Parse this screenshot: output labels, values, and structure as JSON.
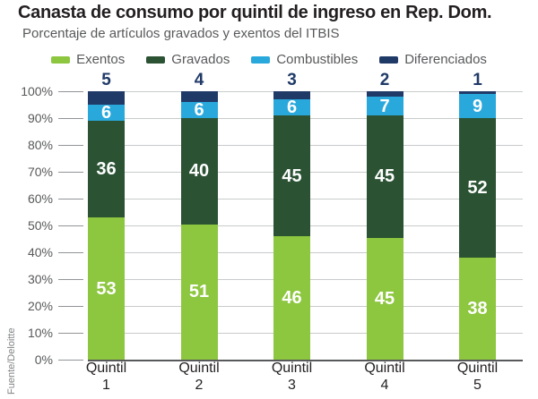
{
  "title": "Canasta de consumo por quintil de ingreso en Rep. Dom.",
  "subtitle": "Porcentaje de artículos gravados y exentos del ITBIS",
  "source": "Fuente/Deloitte",
  "colors": {
    "exentos": "#8dc63f",
    "gravados": "#2a5233",
    "combustibles": "#29a8dc",
    "diferenciados": "#203a68",
    "grid": "#c9cacb",
    "baseline": "#58595b",
    "axis_text": "#58595b",
    "title_text": "#231f20",
    "source_text": "#808285"
  },
  "chart_data": {
    "type": "bar",
    "stacked": true,
    "title": "Canasta de consumo por quintil de ingreso en Rep. Dom.",
    "subtitle": "Porcentaje de artículos gravados y exentos del ITBIS",
    "categories": [
      "Quintil 1",
      "Quintil 2",
      "Quintil 3",
      "Quintil 4",
      "Quintil 5"
    ],
    "category_label_lines": [
      [
        "Quintil",
        "1"
      ],
      [
        "Quintil",
        "2"
      ],
      [
        "Quintil",
        "3"
      ],
      [
        "Quintil",
        "4"
      ],
      [
        "Quintil",
        "5"
      ]
    ],
    "series": [
      {
        "name": "Exentos",
        "color": "#8dc63f",
        "values": [
          53,
          51,
          46,
          45,
          38
        ],
        "label_position": "inside"
      },
      {
        "name": "Gravados",
        "color": "#2a5233",
        "values": [
          36,
          40,
          45,
          45,
          52
        ],
        "label_position": "inside"
      },
      {
        "name": "Combustibles",
        "color": "#29a8dc",
        "values": [
          6,
          6,
          6,
          7,
          9
        ],
        "label_position": "inside"
      },
      {
        "name": "Diferenciados",
        "color": "#203a68",
        "values": [
          5,
          4,
          3,
          2,
          1
        ],
        "label_position": "above"
      }
    ],
    "y_ticks": [
      "0%",
      "10%",
      "20%",
      "30%",
      "40%",
      "50%",
      "60%",
      "70%",
      "80%",
      "90%",
      "100%"
    ],
    "ylim": [
      0,
      100
    ],
    "grid": true,
    "legend_position": "top",
    "xlabel": "",
    "ylabel": ""
  }
}
